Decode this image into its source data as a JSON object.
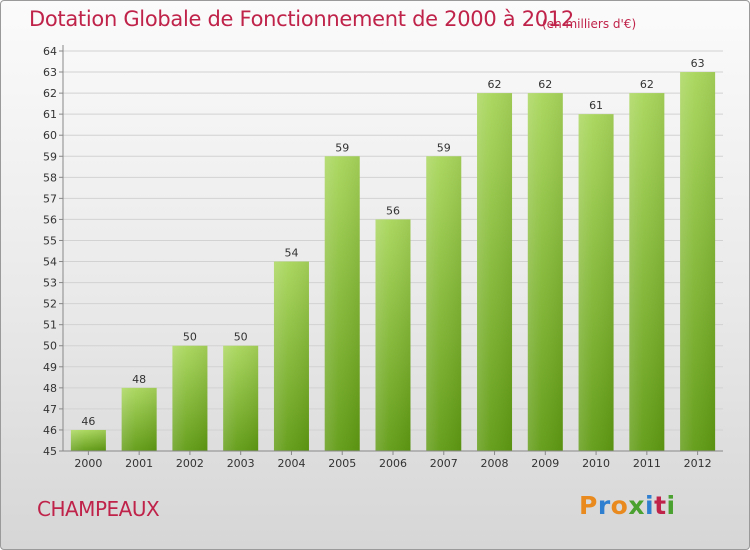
{
  "header": {
    "title": "Dotation Globale de Fonctionnement de 2000 à 2012",
    "subtitle": "(en milliers d'€)"
  },
  "footer": {
    "commune": "CHAMPEAUX",
    "logo": "Proxiti",
    "logo_colors": [
      "#e98a1e",
      "#2f7fd0",
      "#e98a1e",
      "#4aa12f",
      "#2f7fd0",
      "#c0234a",
      "#4aa12f"
    ]
  },
  "colors": {
    "bar_light": "#a8d65a",
    "bar_dark": "#5f9a12",
    "accent": "#c0234a"
  },
  "chart_data": {
    "type": "bar",
    "title": "Dotation Globale de Fonctionnement de 2000 à 2012",
    "subtitle": "(en milliers d'€)",
    "categories": [
      "2000",
      "2001",
      "2002",
      "2003",
      "2004",
      "2005",
      "2006",
      "2007",
      "2008",
      "2009",
      "2010",
      "2011",
      "2012"
    ],
    "values": [
      46,
      48,
      50,
      50,
      54,
      59,
      56,
      59,
      62,
      62,
      61,
      62,
      63
    ],
    "ylim": [
      45,
      64
    ],
    "yticks": [
      45,
      46,
      47,
      48,
      49,
      50,
      51,
      52,
      53,
      54,
      55,
      56,
      57,
      58,
      59,
      60,
      61,
      62,
      63,
      64
    ],
    "xlabel": "",
    "ylabel": "",
    "grid": true,
    "data_labels": true
  }
}
